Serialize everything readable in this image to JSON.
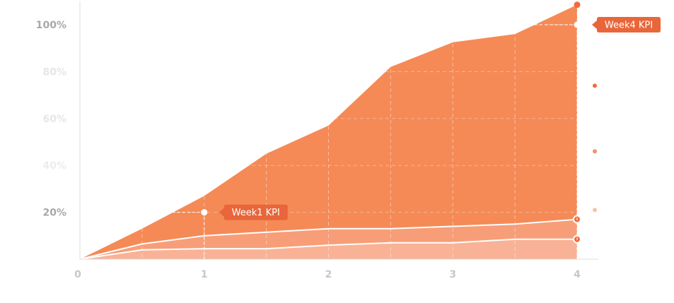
{
  "chart_data": {
    "type": "area",
    "x": [
      0,
      0.5,
      1,
      1.5,
      2,
      2.5,
      3,
      3.5,
      4
    ],
    "ylim": [
      0,
      110
    ],
    "xlim": [
      0,
      4
    ],
    "y_ticks": [
      {
        "value": 20,
        "label": "20%",
        "color": "#a8a8a8"
      },
      {
        "value": 40,
        "label": "40%",
        "color": "#ececec"
      },
      {
        "value": 60,
        "label": "60%",
        "color": "#e6e6e6"
      },
      {
        "value": 80,
        "label": "80%",
        "color": "#e6e6e6"
      },
      {
        "value": 100,
        "label": "100%",
        "color": "#a8a8a8"
      }
    ],
    "x_ticks": [
      {
        "value": 0,
        "label": "0"
      },
      {
        "value": 1,
        "label": "1"
      },
      {
        "value": 2,
        "label": "2"
      },
      {
        "value": 3,
        "label": "3"
      },
      {
        "value": 4,
        "label": "4"
      }
    ],
    "series": [
      {
        "values": [
          0,
          4,
          4.5,
          4.5,
          6,
          7,
          7,
          8.5,
          8.5
        ],
        "color": "#f9b295"
      },
      {
        "values": [
          0,
          6.5,
          10,
          11.5,
          13,
          13,
          14,
          15,
          17
        ],
        "color": "#f79e78"
      },
      {
        "values": [
          0,
          13,
          27,
          45,
          57,
          82,
          92.5,
          96,
          108.5
        ],
        "color": "#f58a57"
      }
    ],
    "grid": true,
    "annotations": [
      {
        "label": "Week1 KPI",
        "x": 1,
        "y": 20
      },
      {
        "label": "Week4 KPI",
        "x": 4,
        "y": 100
      }
    ],
    "side_markers": [
      {
        "y": 74,
        "color": "#f26b3a"
      },
      {
        "y": 46,
        "color": "#f5916a"
      },
      {
        "y": 21,
        "color": "#f9c0a4"
      }
    ],
    "colors": {
      "accent": "#f26b3a",
      "label_bg": "#e8663a",
      "axis": "#dddddd",
      "grid": "#ffffff"
    }
  }
}
